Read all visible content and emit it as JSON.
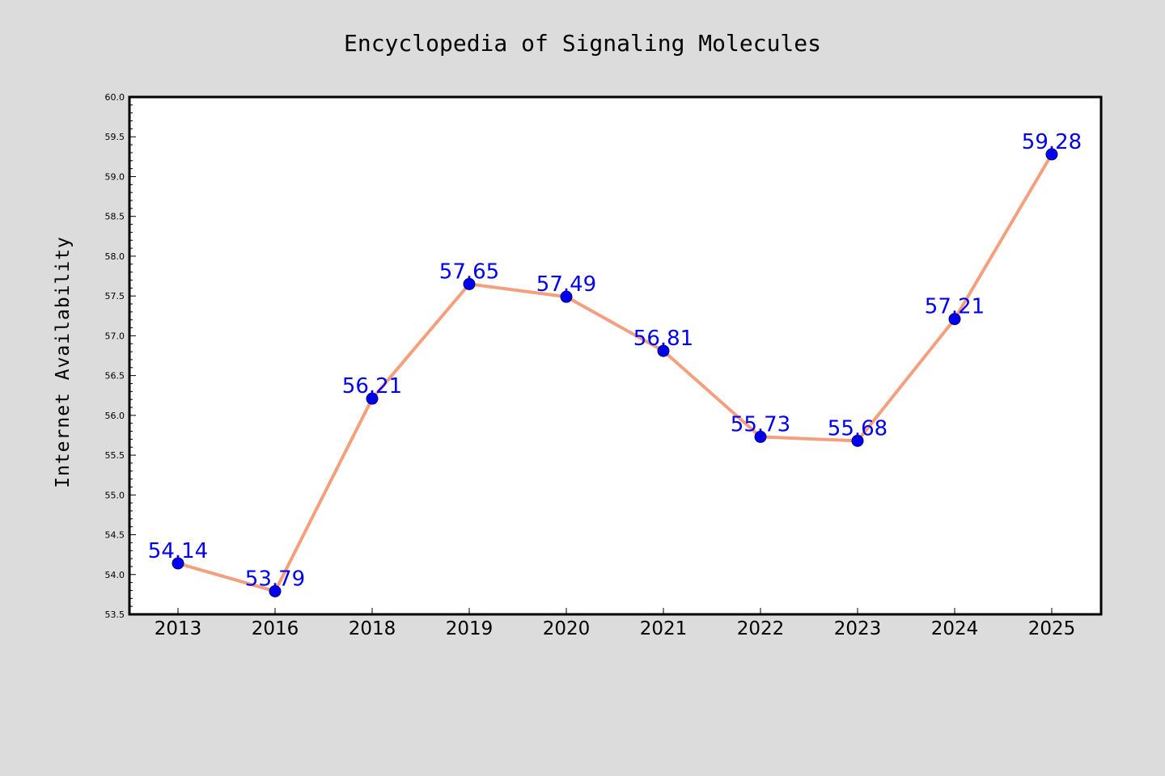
{
  "chart_data": {
    "type": "line",
    "title": "Encyclopedia of Signaling Molecules",
    "xlabel": "",
    "ylabel": "Internet Availability",
    "categories": [
      "2013",
      "2016",
      "2018",
      "2019",
      "2020",
      "2021",
      "2022",
      "2023",
      "2024",
      "2025"
    ],
    "series": [
      {
        "values": [
          54.14,
          53.79,
          56.21,
          57.65,
          57.49,
          56.81,
          55.73,
          55.68,
          57.21,
          59.28
        ],
        "labels": [
          "54.14",
          "53.79",
          "56.21",
          "57.65",
          "57.49",
          "56.81",
          "55.73",
          "55.68",
          "57.21",
          "59.28"
        ],
        "line_color": "#f4a07f",
        "marker_color": "#0000ee",
        "label_color": "#0000ee"
      }
    ],
    "ylim": [
      53.5,
      60.0
    ],
    "yticks": [
      53.5,
      54.0,
      54.5,
      55.0,
      55.5,
      56.0,
      56.5,
      57.0,
      57.5,
      58.0,
      58.5,
      59.0,
      59.5,
      60.0
    ],
    "ytick_labels": [
      "53.5",
      "54.0",
      "54.5",
      "55.0",
      "55.5",
      "56.0",
      "56.5",
      "57.0",
      "57.5",
      "58.0",
      "58.5",
      "59.0",
      "59.5",
      "60.0"
    ],
    "grid": false,
    "legend": "none",
    "background_color": "#dcdcdc",
    "plot_background_color": "#ffffff"
  }
}
